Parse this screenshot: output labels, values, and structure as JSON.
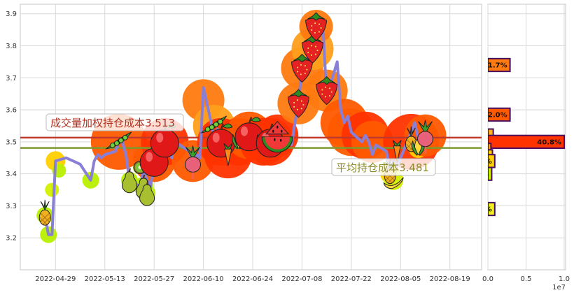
{
  "chart_data": [
    {
      "type": "line",
      "x_ticks": [
        "2022-04-29",
        "2022-05-13",
        "2022-05-27",
        "2022-06-10",
        "2022-06-24",
        "2022-07-08",
        "2022-07-22",
        "2022-08-05",
        "2022-08-19"
      ],
      "y_ticks": [
        "3.2",
        "3.3",
        "3.4",
        "3.5",
        "3.6",
        "3.7",
        "3.8",
        "3.9"
      ],
      "ylim": [
        3.1,
        3.93
      ],
      "grid": true,
      "series": [
        {
          "kind": "price",
          "color": "#8a7fd6",
          "points": [
            [
              "2022-04-26",
              3.27
            ],
            [
              "2022-04-27",
              3.21
            ],
            [
              "2022-04-28",
              3.21
            ],
            [
              "2022-04-29",
              3.44
            ],
            [
              "2022-05-02",
              3.45
            ],
            [
              "2022-05-04",
              3.44
            ],
            [
              "2022-05-06",
              3.43
            ],
            [
              "2022-05-09",
              3.38
            ],
            [
              "2022-05-10",
              3.44
            ],
            [
              "2022-05-11",
              3.46
            ],
            [
              "2022-05-12",
              3.45
            ],
            [
              "2022-05-13",
              3.46
            ],
            [
              "2022-05-16",
              3.47
            ],
            [
              "2022-05-17",
              3.5
            ],
            [
              "2022-05-18",
              3.5
            ],
            [
              "2022-05-19",
              3.46
            ],
            [
              "2022-05-20",
              3.38
            ],
            [
              "2022-05-23",
              3.36
            ],
            [
              "2022-05-24",
              3.41
            ],
            [
              "2022-05-25",
              3.38
            ],
            [
              "2022-05-26",
              3.36
            ],
            [
              "2022-05-27",
              3.44
            ],
            [
              "2022-05-30",
              3.46
            ],
            [
              "2022-05-31",
              3.47
            ],
            [
              "2022-06-01",
              3.45
            ],
            [
              "2022-06-02",
              3.5
            ],
            [
              "2022-06-06",
              3.47
            ],
            [
              "2022-06-07",
              3.44
            ],
            [
              "2022-06-08",
              3.46
            ],
            [
              "2022-06-09",
              3.45
            ],
            [
              "2022-06-10",
              3.67
            ],
            [
              "2022-06-13",
              3.52
            ],
            [
              "2022-06-14",
              3.54
            ],
            [
              "2022-06-15",
              3.52
            ],
            [
              "2022-06-16",
              3.5
            ],
            [
              "2022-06-17",
              3.48
            ],
            [
              "2022-06-20",
              3.49
            ],
            [
              "2022-06-21",
              3.53
            ],
            [
              "2022-06-22",
              3.55
            ],
            [
              "2022-06-23",
              3.52
            ],
            [
              "2022-06-24",
              3.48
            ],
            [
              "2022-06-27",
              3.5
            ],
            [
              "2022-06-28",
              3.53
            ],
            [
              "2022-06-29",
              3.49
            ],
            [
              "2022-06-30",
              3.49
            ],
            [
              "2022-07-01",
              3.52
            ],
            [
              "2022-07-04",
              3.5
            ],
            [
              "2022-07-05",
              3.49
            ],
            [
              "2022-07-06",
              3.56
            ],
            [
              "2022-07-07",
              3.62
            ],
            [
              "2022-07-08",
              3.73
            ],
            [
              "2022-07-11",
              3.79
            ],
            [
              "2022-07-12",
              3.86
            ],
            [
              "2022-07-13",
              3.86
            ],
            [
              "2022-07-14",
              3.85
            ],
            [
              "2022-07-15",
              3.64
            ],
            [
              "2022-07-18",
              3.75
            ],
            [
              "2022-07-19",
              3.6
            ],
            [
              "2022-07-20",
              3.56
            ],
            [
              "2022-07-21",
              3.58
            ],
            [
              "2022-07-22",
              3.53
            ],
            [
              "2022-07-25",
              3.5
            ],
            [
              "2022-07-26",
              3.52
            ],
            [
              "2022-07-27",
              3.5
            ],
            [
              "2022-07-28",
              3.46
            ],
            [
              "2022-07-29",
              3.49
            ],
            [
              "2022-08-01",
              3.47
            ],
            [
              "2022-08-02",
              3.4
            ],
            [
              "2022-08-03",
              3.44
            ],
            [
              "2022-08-04",
              3.42
            ],
            [
              "2022-08-05",
              3.45
            ],
            [
              "2022-08-08",
              3.53
            ],
            [
              "2022-08-09",
              3.56
            ],
            [
              "2022-08-10",
              3.51
            ],
            [
              "2022-08-11",
              3.49
            ],
            [
              "2022-08-12",
              3.54
            ]
          ]
        }
      ],
      "cost_lines": [
        {
          "label": "成交量加权持仓成本3.513",
          "value": 3.513,
          "color": "#c0392b",
          "text_color": "#b03020"
        },
        {
          "label": "平均持仓成本3.481",
          "value": 3.481,
          "color": "#7c9a2e",
          "text_color": "#8a8a2a"
        }
      ],
      "markers": {
        "palette": [
          "#ff3300",
          "#ff5a00",
          "#ff7a10",
          "#ff9f1a",
          "#ffd000",
          "#d4f000",
          "#b8f000"
        ],
        "items": [
          [
            "2022-04-26",
            3.27,
            12,
            6,
            "pineapple"
          ],
          [
            "2022-04-27",
            3.21,
            12,
            6,
            ""
          ],
          [
            "2022-04-28",
            3.35,
            10,
            5,
            ""
          ],
          [
            "2022-04-29",
            3.44,
            14,
            4,
            ""
          ],
          [
            "2022-04-30",
            3.41,
            10,
            6,
            ""
          ],
          [
            "2022-05-09",
            3.38,
            12,
            6,
            ""
          ],
          [
            "2022-05-17",
            3.5,
            40,
            1,
            "peapod"
          ],
          [
            "2022-05-20",
            3.38,
            12,
            6,
            "pear"
          ],
          [
            "2022-05-23",
            3.42,
            10,
            6,
            "kiwi"
          ],
          [
            "2022-05-24",
            3.36,
            14,
            6,
            "pear"
          ],
          [
            "2022-05-25",
            3.34,
            12,
            6,
            "pear"
          ],
          [
            "2022-05-27",
            3.44,
            30,
            1,
            "apple"
          ],
          [
            "2022-05-30",
            3.5,
            34,
            0,
            "apple"
          ],
          [
            "2022-06-07",
            3.44,
            30,
            1,
            "radish"
          ],
          [
            "2022-06-10",
            3.63,
            30,
            2,
            ""
          ],
          [
            "2022-06-13",
            3.55,
            30,
            3,
            "peapod"
          ],
          [
            "2022-06-15",
            3.5,
            34,
            0,
            "apple"
          ],
          [
            "2022-06-17",
            3.46,
            34,
            0,
            "carrot"
          ],
          [
            "2022-06-20",
            3.5,
            34,
            0,
            "corn"
          ],
          [
            "2022-06-23",
            3.52,
            34,
            1,
            "apple"
          ],
          [
            "2022-06-27",
            3.5,
            34,
            0,
            "corn"
          ],
          [
            "2022-06-29",
            3.5,
            34,
            0,
            "apple"
          ],
          [
            "2022-07-01",
            3.52,
            30,
            0,
            "watermelon"
          ],
          [
            "2022-07-07",
            3.62,
            30,
            2,
            "strawberry"
          ],
          [
            "2022-07-08",
            3.73,
            30,
            2,
            "strawberry"
          ],
          [
            "2022-07-11",
            3.79,
            30,
            3,
            "strawberry"
          ],
          [
            "2022-07-12",
            3.86,
            24,
            2,
            "strawberry"
          ],
          [
            "2022-07-15",
            3.66,
            30,
            2,
            "strawberry"
          ],
          [
            "2022-07-20",
            3.56,
            34,
            1,
            ""
          ],
          [
            "2022-07-22",
            3.53,
            34,
            1,
            ""
          ],
          [
            "2022-07-26",
            3.52,
            34,
            0,
            ""
          ],
          [
            "2022-07-28",
            3.5,
            30,
            1,
            ""
          ],
          [
            "2022-08-02",
            3.4,
            14,
            4,
            "pineapple"
          ],
          [
            "2022-08-03",
            3.38,
            14,
            5,
            "banana"
          ],
          [
            "2022-08-04",
            3.47,
            10,
            4,
            "carrot"
          ],
          [
            "2022-08-08",
            3.5,
            40,
            0,
            "pineapple"
          ],
          [
            "2022-08-10",
            3.48,
            14,
            4,
            "corn"
          ],
          [
            "2022-08-12",
            3.52,
            30,
            1,
            "radish"
          ]
        ]
      }
    },
    {
      "type": "bar",
      "orientation": "horizontal",
      "x_ticks": [
        "0.0",
        "0.5",
        "1.0"
      ],
      "x_scale_label": "1e7",
      "xlim": [
        0,
        1.0
      ],
      "bars": [
        {
          "price": 3.74,
          "value": 0.29,
          "label": "1.7%",
          "color": "#ff7a10"
        },
        {
          "price": 3.585,
          "value": 0.29,
          "label": "2.0%",
          "color": "#ff5a00"
        },
        {
          "price": 3.52,
          "value": 0.07,
          "label": "%",
          "color": "#ffb020"
        },
        {
          "price": 3.5,
          "value": 1.0,
          "label": "40.8%",
          "color": "#ff3300"
        },
        {
          "price": 3.475,
          "value": 0.04,
          "label": "",
          "color": "#ff9f1a"
        },
        {
          "price": 3.455,
          "value": 0.06,
          "label": "",
          "color": "#ffd000"
        },
        {
          "price": 3.44,
          "value": 0.09,
          "label": "%",
          "color": "#ffd000"
        },
        {
          "price": 3.4,
          "value": 0.05,
          "label": "%",
          "color": "#c8f000"
        },
        {
          "price": 3.29,
          "value": 0.09,
          "label": "%",
          "color": "#f0f020"
        }
      ]
    }
  ]
}
